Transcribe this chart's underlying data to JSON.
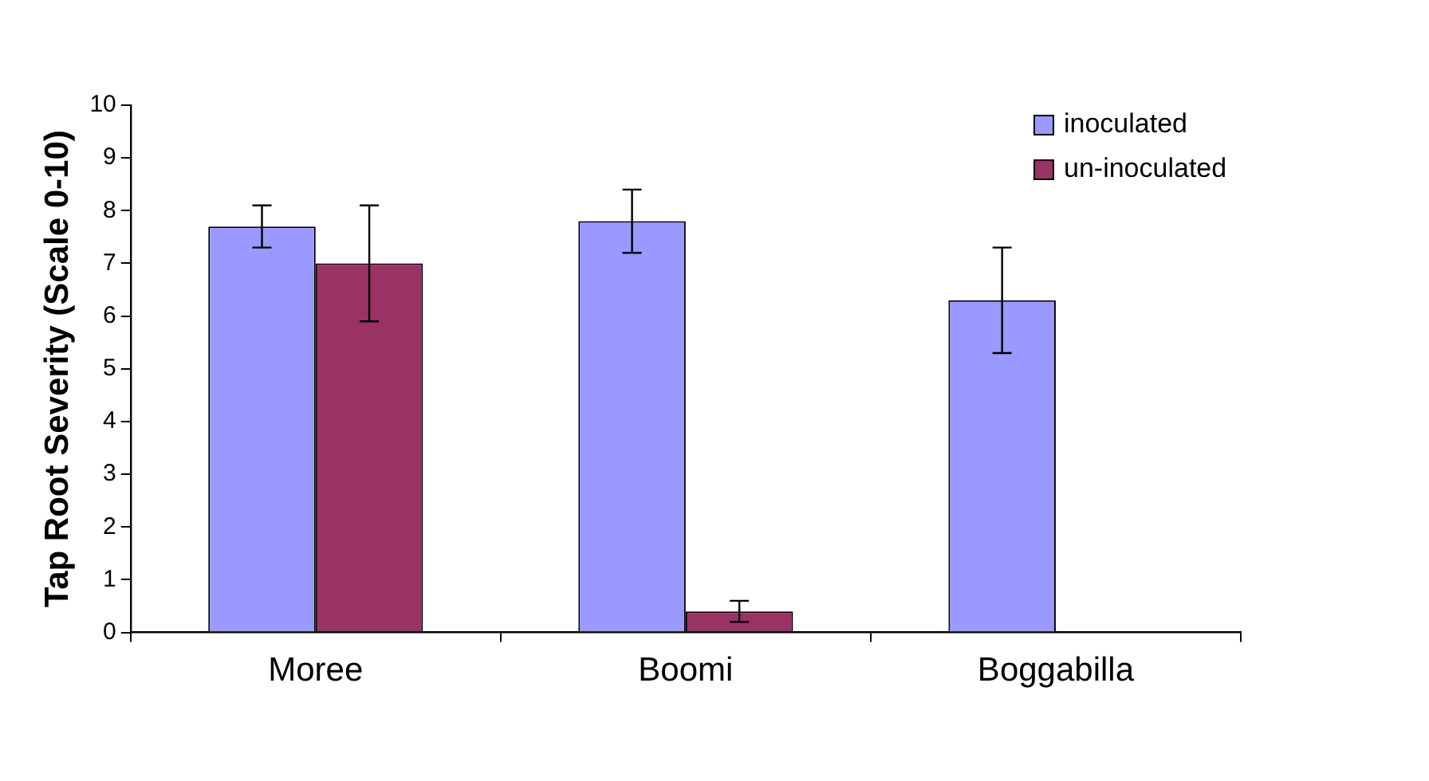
{
  "chart_data": {
    "type": "bar",
    "ylabel": "Tap Root Severity (Scale 0-10)",
    "categories": [
      "Moree",
      "Boomi",
      "Boggabilla"
    ],
    "series": [
      {
        "name": "inoculated",
        "color": "#9999ff",
        "values": [
          7.7,
          7.8,
          6.3
        ],
        "errors": [
          0.4,
          0.6,
          1.0
        ]
      },
      {
        "name": "un-inoculated",
        "color": "#993366",
        "values": [
          7.0,
          0.4,
          0
        ],
        "errors": [
          1.1,
          0.2,
          null
        ]
      }
    ],
    "ylim": [
      0,
      10
    ],
    "yticks": [
      0,
      1,
      2,
      3,
      4,
      5,
      6,
      7,
      8,
      9,
      10
    ],
    "grid": false,
    "legend": "top right"
  }
}
